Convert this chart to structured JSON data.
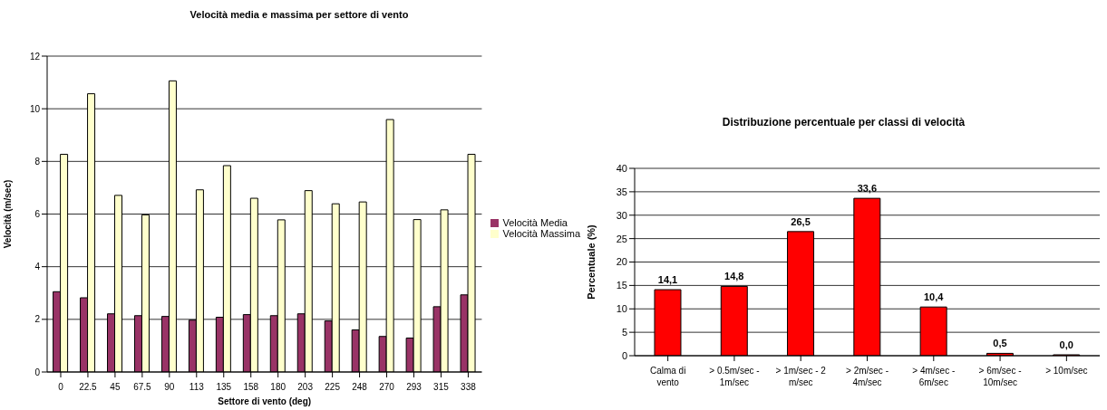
{
  "chart_data": [
    {
      "type": "bar",
      "title": "Velocità media e massima per settore di vento",
      "xlabel": "Settore di vento (deg)",
      "ylabel": "Velocità (m/sec)",
      "categories": [
        "0",
        "22.5",
        "45",
        "67.5",
        "90",
        "113",
        "135",
        "158",
        "180",
        "203",
        "225",
        "248",
        "270",
        "293",
        "315",
        "338"
      ],
      "series": [
        {
          "name": "Velocità Media",
          "color": "#993366",
          "values": [
            3.05,
            2.82,
            2.21,
            2.14,
            2.11,
            1.97,
            2.08,
            2.18,
            2.14,
            2.21,
            1.94,
            1.6,
            1.35,
            1.29,
            2.48,
            2.93
          ]
        },
        {
          "name": "Velocità Massima",
          "color": "#ffffcc",
          "values": [
            8.27,
            10.57,
            6.71,
            5.97,
            11.06,
            6.92,
            7.84,
            6.6,
            5.78,
            6.89,
            6.39,
            6.46,
            9.59,
            5.79,
            6.16,
            8.27
          ]
        }
      ],
      "ylim": [
        0,
        12
      ],
      "yticks": [
        0,
        2,
        4,
        6,
        8,
        10,
        12
      ],
      "grid": "y",
      "legend": "right"
    },
    {
      "type": "bar",
      "title": "Distribuzione percentuale per classi di velocità",
      "ylabel": "Percentuale (%)",
      "categories": [
        "Calma di vento",
        "> 0.5m/sec - 1m/sec",
        "> 1m/sec - 2 m/sec",
        "> 2m/sec - 4m/sec",
        "> 4m/sec - 6m/sec",
        "> 6m/sec - 10m/sec",
        "> 10m/sec"
      ],
      "values": [
        14.1,
        14.8,
        26.5,
        33.6,
        10.4,
        0.5,
        0.0
      ],
      "color": "#ff0000",
      "value_labels": [
        "14,1",
        "14,8",
        "26,5",
        "33,6",
        "10,4",
        "0,5",
        "0,0"
      ],
      "ylim": [
        0,
        40
      ],
      "yticks": [
        0,
        5,
        10,
        15,
        20,
        25,
        30,
        35,
        40
      ],
      "grid": "y"
    }
  ]
}
